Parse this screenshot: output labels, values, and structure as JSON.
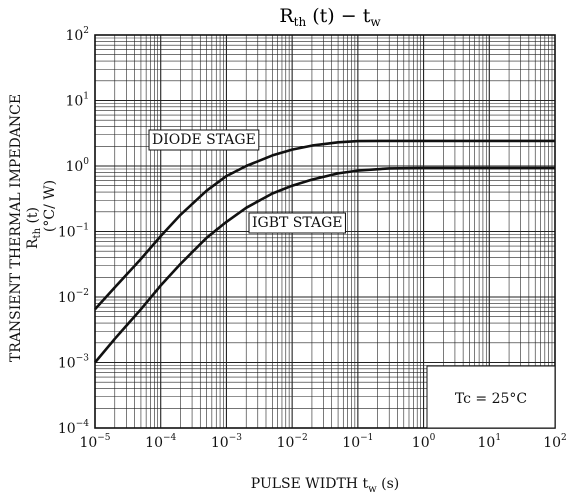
{
  "chart_data": {
    "type": "line",
    "title": {
      "main": "R",
      "main_sub": "th",
      "main_args": " (t)  −  t",
      "main_args_sub": "w"
    },
    "xlabel": {
      "text": "PULSE WIDTH   t",
      "sub": "w",
      "unit": "   (s)"
    },
    "ylabel": {
      "line1": "TRANSIENT THERMAL IMPEDANCE",
      "line2_main": "R",
      "line2_sub": "th",
      "line2_rest": " (t)",
      "line3": "(°C/ W)"
    },
    "x_scale": "log",
    "y_scale": "log",
    "xlim": [
      1e-05,
      100
    ],
    "ylim": [
      0.0001,
      100
    ],
    "grid": true,
    "x_ticks": [
      {
        "base": "10",
        "exp": "−5",
        "value": 1e-05
      },
      {
        "base": "10",
        "exp": "−4",
        "value": 0.0001
      },
      {
        "base": "10",
        "exp": "−3",
        "value": 0.001
      },
      {
        "base": "10",
        "exp": "−2",
        "value": 0.01
      },
      {
        "base": "10",
        "exp": "−1",
        "value": 0.1
      },
      {
        "base": "10",
        "exp": "0",
        "value": 1
      },
      {
        "base": "10",
        "exp": "1",
        "value": 10
      },
      {
        "base": "10",
        "exp": "2",
        "value": 100
      }
    ],
    "y_ticks": [
      {
        "base": "10",
        "exp": "2",
        "value": 100
      },
      {
        "base": "10",
        "exp": "1",
        "value": 10
      },
      {
        "base": "10",
        "exp": "0",
        "value": 1
      },
      {
        "base": "10",
        "exp": "−1",
        "value": 0.1
      },
      {
        "base": "10",
        "exp": "−2",
        "value": 0.01
      },
      {
        "base": "10",
        "exp": "−3",
        "value": 0.001
      },
      {
        "base": "10",
        "exp": "−4",
        "value": 0.0001
      }
    ],
    "series": [
      {
        "name": "DIODE STAGE",
        "color": "#111111",
        "points": [
          {
            "x": 1e-05,
            "y": 0.0065
          },
          {
            "x": 2e-05,
            "y": 0.014
          },
          {
            "x": 5e-05,
            "y": 0.038
          },
          {
            "x": 0.0001,
            "y": 0.085
          },
          {
            "x": 0.0002,
            "y": 0.18
          },
          {
            "x": 0.0005,
            "y": 0.42
          },
          {
            "x": 0.001,
            "y": 0.7
          },
          {
            "x": 0.002,
            "y": 1.0
          },
          {
            "x": 0.005,
            "y": 1.45
          },
          {
            "x": 0.01,
            "y": 1.78
          },
          {
            "x": 0.02,
            "y": 2.05
          },
          {
            "x": 0.05,
            "y": 2.3
          },
          {
            "x": 0.1,
            "y": 2.4
          },
          {
            "x": 0.3,
            "y": 2.42
          },
          {
            "x": 1,
            "y": 2.42
          },
          {
            "x": 100,
            "y": 2.42
          }
        ]
      },
      {
        "name": "IGBT STAGE",
        "color": "#111111",
        "points": [
          {
            "x": 1e-05,
            "y": 0.001
          },
          {
            "x": 2e-05,
            "y": 0.0023
          },
          {
            "x": 5e-05,
            "y": 0.0065
          },
          {
            "x": 0.0001,
            "y": 0.015
          },
          {
            "x": 0.0002,
            "y": 0.032
          },
          {
            "x": 0.0005,
            "y": 0.08
          },
          {
            "x": 0.001,
            "y": 0.14
          },
          {
            "x": 0.002,
            "y": 0.23
          },
          {
            "x": 0.005,
            "y": 0.38
          },
          {
            "x": 0.01,
            "y": 0.5
          },
          {
            "x": 0.02,
            "y": 0.62
          },
          {
            "x": 0.05,
            "y": 0.77
          },
          {
            "x": 0.1,
            "y": 0.85
          },
          {
            "x": 0.3,
            "y": 0.92
          },
          {
            "x": 1,
            "y": 0.93
          },
          {
            "x": 100,
            "y": 0.93
          }
        ]
      }
    ],
    "annotation": "Tc = 25°C"
  }
}
